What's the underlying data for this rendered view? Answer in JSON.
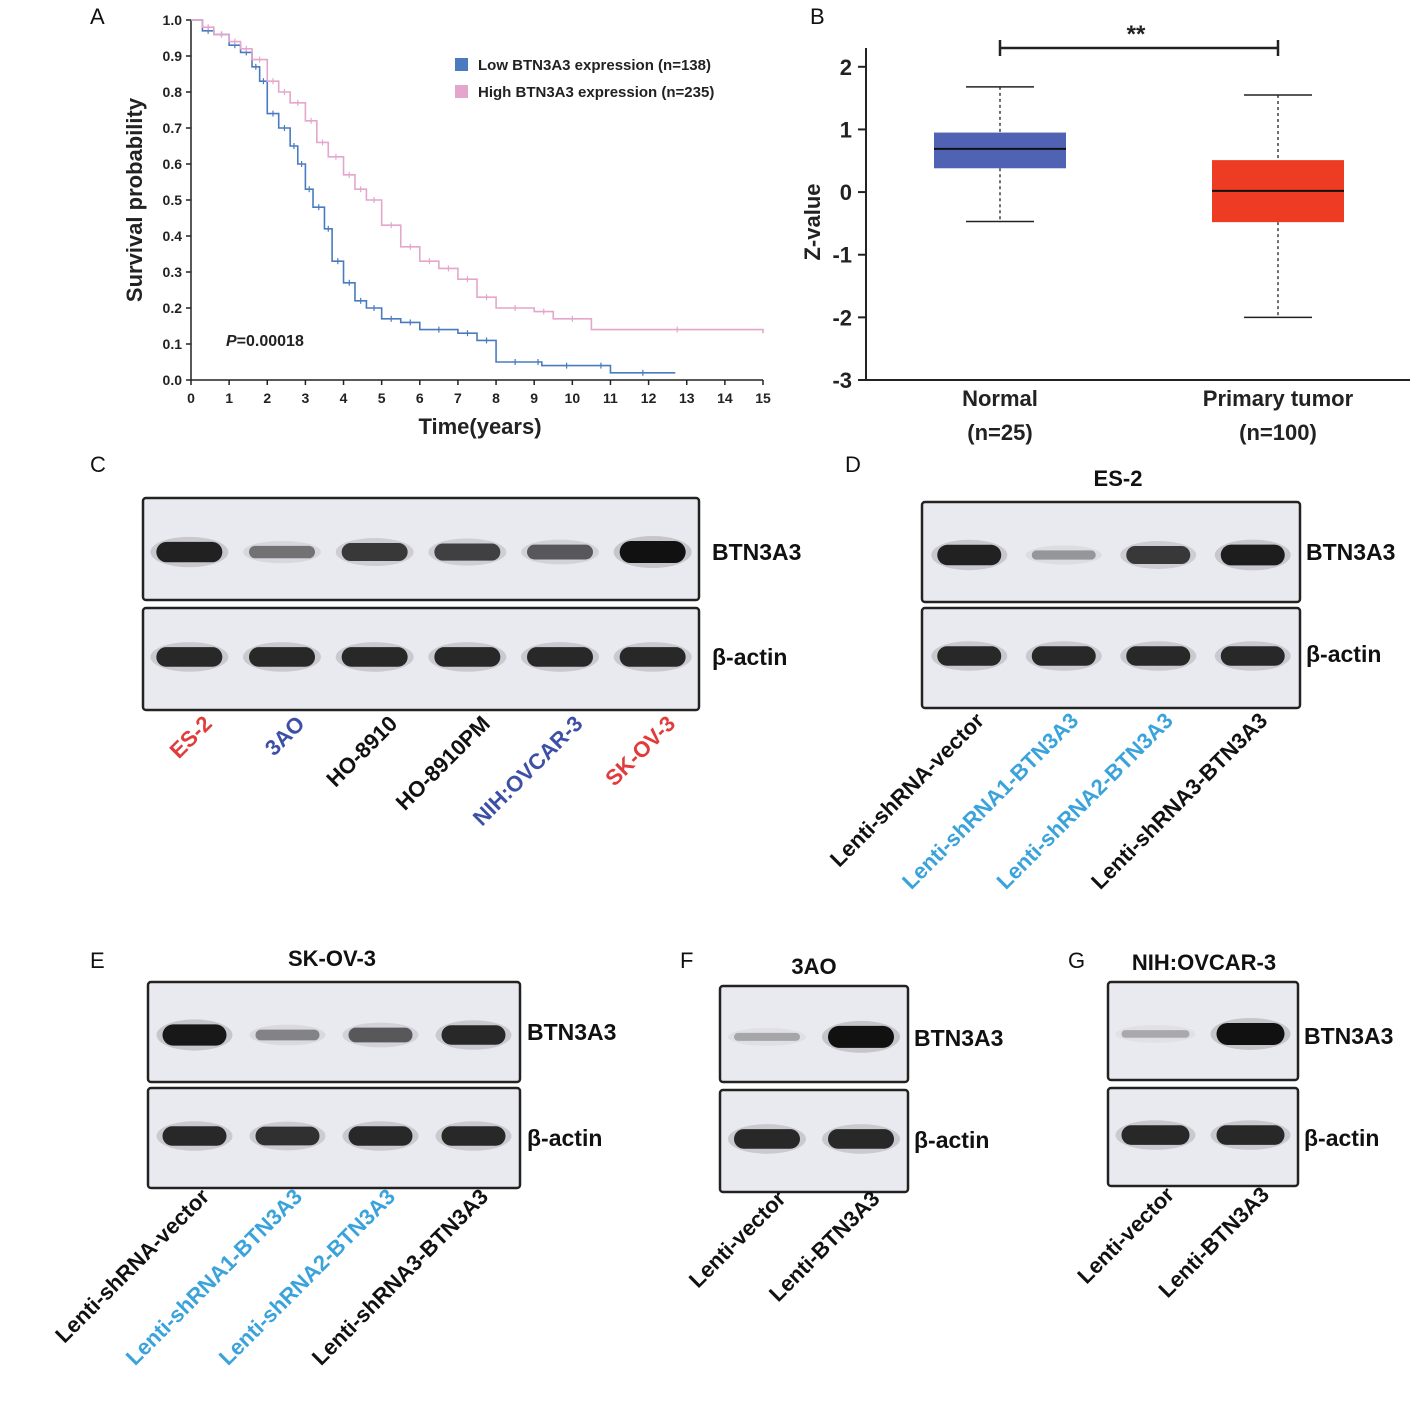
{
  "panel_labels": [
    "A",
    "B",
    "C",
    "D",
    "E",
    "F",
    "G"
  ],
  "chart_data": [
    {
      "panel": "A",
      "type": "line",
      "title": "",
      "xlabel": "Time(years)",
      "ylabel": "Survival probability",
      "xlim": [
        0,
        15
      ],
      "ylim": [
        0,
        1
      ],
      "x_ticks": [
        "0",
        "1",
        "2",
        "3",
        "4",
        "5",
        "6",
        "7",
        "8",
        "9",
        "10",
        "11",
        "12",
        "13",
        "14",
        "15"
      ],
      "y_ticks": [
        "0.0",
        "0.1",
        "0.2",
        "0.3",
        "0.4",
        "0.5",
        "0.6",
        "0.7",
        "0.8",
        "0.9",
        "1.0"
      ],
      "legend_position": "top-right",
      "annotation": {
        "p_label": "P",
        "p_value": "=0.00018"
      },
      "series": [
        {
          "name": "Low BTN3A3 expression (n=138)",
          "color": "#4a7bbf",
          "x": [
            0,
            0.3,
            0.6,
            1.0,
            1.3,
            1.6,
            1.8,
            2.0,
            2.3,
            2.6,
            2.8,
            3.0,
            3.2,
            3.5,
            3.7,
            4.0,
            4.3,
            4.6,
            5.0,
            5.5,
            6.0,
            7.0,
            7.5,
            8.0,
            9.0,
            9.2,
            10.5,
            11.0,
            12.7
          ],
          "y": [
            1.0,
            0.97,
            0.96,
            0.93,
            0.91,
            0.87,
            0.83,
            0.74,
            0.7,
            0.65,
            0.6,
            0.53,
            0.48,
            0.42,
            0.33,
            0.27,
            0.22,
            0.2,
            0.17,
            0.16,
            0.14,
            0.13,
            0.11,
            0.05,
            0.05,
            0.04,
            0.04,
            0.02,
            0.02
          ]
        },
        {
          "name": "High BTN3A3 expression (n=235)",
          "color": "#e4a6cc",
          "x": [
            0,
            0.3,
            0.6,
            1.0,
            1.3,
            1.6,
            2.0,
            2.3,
            2.6,
            3.0,
            3.3,
            3.6,
            4.0,
            4.3,
            4.6,
            5.0,
            5.5,
            6.0,
            6.5,
            7.0,
            7.5,
            8.0,
            9.0,
            9.5,
            10.5,
            15.0
          ],
          "y": [
            1.0,
            0.98,
            0.96,
            0.94,
            0.92,
            0.89,
            0.83,
            0.8,
            0.77,
            0.72,
            0.66,
            0.62,
            0.57,
            0.53,
            0.5,
            0.43,
            0.37,
            0.33,
            0.31,
            0.28,
            0.23,
            0.2,
            0.19,
            0.17,
            0.14,
            0.13
          ]
        }
      ]
    },
    {
      "panel": "B",
      "type": "box",
      "title": "",
      "ylabel": "Z-value",
      "ylim": [
        -3,
        2.3
      ],
      "y_ticks": [
        "-3",
        "-2",
        "-1",
        "0",
        "1",
        "2"
      ],
      "significance": "**",
      "categories": [
        "Normal",
        "Primary tumor"
      ],
      "category_n": [
        "(n=25)",
        "(n=100)"
      ],
      "boxes": [
        {
          "name": "Normal",
          "min": -0.47,
          "q1": 0.38,
          "median": 0.69,
          "q3": 0.95,
          "max": 1.68,
          "color": "#5062b4"
        },
        {
          "name": "Primary tumor",
          "min": -2.0,
          "q1": -0.48,
          "median": 0.02,
          "q3": 0.51,
          "max": 1.55,
          "color": "#ee3b24"
        }
      ]
    }
  ],
  "blots": {
    "C": {
      "title": "",
      "proteins": [
        "BTN3A3",
        "β-actin"
      ],
      "lanes": [
        {
          "label": "ES-2",
          "color": "#e23b3b"
        },
        {
          "label": "3AO",
          "color": "#3d4fa6"
        },
        {
          "label": "HO-8910",
          "color": "#111111"
        },
        {
          "label": "HO-8910PM",
          "color": "#111111"
        },
        {
          "label": "NIH:OVCAR-3",
          "color": "#3d4fa6"
        },
        {
          "label": "SK-OV-3",
          "color": "#e23b3b"
        }
      ],
      "btn3a3_intensity": [
        0.9,
        0.4,
        0.75,
        0.7,
        0.55,
        1.0
      ],
      "actin_intensity": [
        0.85,
        0.85,
        0.85,
        0.85,
        0.85,
        0.85
      ]
    },
    "D": {
      "title": "ES-2",
      "proteins": [
        "BTN3A3",
        "β-actin"
      ],
      "lanes": [
        {
          "label": "Lenti-shRNA-vector",
          "color": "#111111"
        },
        {
          "label": "Lenti-shRNA1-BTN3A3",
          "color": "#3aa3dc"
        },
        {
          "label": "Lenti-shRNA2-BTN3A3",
          "color": "#3aa3dc"
        },
        {
          "label": "Lenti-shRNA3-BTN3A3",
          "color": "#111111"
        }
      ],
      "btn3a3_intensity": [
        0.9,
        0.2,
        0.75,
        0.92
      ],
      "actin_intensity": [
        0.85,
        0.85,
        0.85,
        0.85
      ]
    },
    "E": {
      "title": "SK-OV-3",
      "proteins": [
        "BTN3A3",
        "β-actin"
      ],
      "lanes": [
        {
          "label": "Lenti-shRNA-vector",
          "color": "#111111"
        },
        {
          "label": "Lenti-shRNA1-BTN3A3",
          "color": "#3aa3dc"
        },
        {
          "label": "Lenti-shRNA2-BTN3A3",
          "color": "#3aa3dc"
        },
        {
          "label": "Lenti-shRNA3-BTN3A3",
          "color": "#111111"
        }
      ],
      "btn3a3_intensity": [
        0.95,
        0.3,
        0.55,
        0.85
      ],
      "actin_intensity": [
        0.85,
        0.8,
        0.85,
        0.85
      ]
    },
    "F": {
      "title": "3AO",
      "proteins": [
        "BTN3A3",
        "β-actin"
      ],
      "lanes": [
        {
          "label": "Lenti-vector",
          "color": "#111111"
        },
        {
          "label": "Lenti-BTN3A3",
          "color": "#111111"
        }
      ],
      "btn3a3_intensity": [
        0.12,
        1.0
      ],
      "actin_intensity": [
        0.85,
        0.85
      ]
    },
    "G": {
      "title": "NIH:OVCAR-3",
      "proteins": [
        "BTN3A3",
        "β-actin"
      ],
      "lanes": [
        {
          "label": "Lenti-vector",
          "color": "#111111"
        },
        {
          "label": "Lenti-BTN3A3",
          "color": "#111111"
        }
      ],
      "btn3a3_intensity": [
        0.1,
        1.0
      ],
      "actin_intensity": [
        0.85,
        0.85
      ]
    }
  }
}
